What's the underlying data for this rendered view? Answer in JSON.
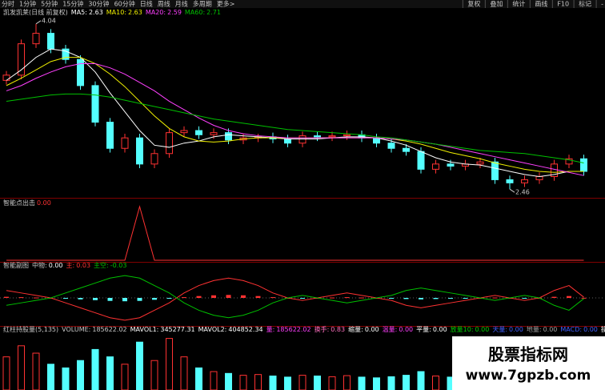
{
  "toolbar": {
    "tabs": [
      "分时",
      "1分钟",
      "5分钟",
      "15分钟",
      "30分钟",
      "60分钟",
      "日线",
      "周线",
      "月线",
      "多周期",
      "更多>"
    ],
    "active": 6,
    "buttons": [
      "复权",
      "叠加",
      "统计",
      "画线",
      "F10",
      "标记",
      "-"
    ]
  },
  "chart_data": [
    {
      "type": "candlestick",
      "title": "凯发凯莱(日线 前复权)",
      "open": [
        3.5,
        3.55,
        3.85,
        3.95,
        3.8,
        3.7,
        3.45,
        3.1,
        2.85,
        2.95,
        2.7,
        2.8,
        3.0,
        3.02,
        2.98,
        3.0,
        2.93,
        2.95,
        2.96,
        2.94,
        2.9,
        2.97,
        2.96,
        2.97,
        2.98,
        2.95,
        2.9,
        2.85,
        2.82,
        2.65,
        2.7,
        2.68,
        2.7,
        2.72,
        2.55,
        2.52,
        2.55,
        2.58,
        2.7,
        2.75
      ],
      "high": [
        3.59,
        3.89,
        4.04,
        3.99,
        3.84,
        3.74,
        3.49,
        3.14,
        2.99,
        2.99,
        2.84,
        3.04,
        3.06,
        3.06,
        3.04,
        3.04,
        2.99,
        2.99,
        3.0,
        2.98,
        3.01,
        3.01,
        3.01,
        3.02,
        3.02,
        2.99,
        2.94,
        2.89,
        2.86,
        2.74,
        2.74,
        2.74,
        2.76,
        2.76,
        2.59,
        2.59,
        2.62,
        2.74,
        2.79,
        2.79
      ],
      "low": [
        3.46,
        3.51,
        3.81,
        3.76,
        3.66,
        3.41,
        3.06,
        2.81,
        2.81,
        2.66,
        2.66,
        2.76,
        2.96,
        2.94,
        2.94,
        2.89,
        2.89,
        2.91,
        2.9,
        2.86,
        2.86,
        2.92,
        2.92,
        2.93,
        2.91,
        2.86,
        2.81,
        2.78,
        2.61,
        2.61,
        2.64,
        2.64,
        2.66,
        2.51,
        2.46,
        2.48,
        2.51,
        2.54,
        2.66,
        2.59
      ],
      "close": [
        3.55,
        3.85,
        3.95,
        3.8,
        3.7,
        3.45,
        3.1,
        2.85,
        2.95,
        2.7,
        2.8,
        3.0,
        3.02,
        2.98,
        3.0,
        2.93,
        2.95,
        2.96,
        2.94,
        2.9,
        2.97,
        2.96,
        2.97,
        2.98,
        2.95,
        2.9,
        2.85,
        2.82,
        2.65,
        2.7,
        2.68,
        2.7,
        2.72,
        2.55,
        2.52,
        2.55,
        2.58,
        2.7,
        2.75,
        2.63
      ],
      "up_color": "#ff3232",
      "down_color": "#54ffff",
      "ylim": [
        2.4,
        4.1
      ],
      "annotations": [
        {
          "series": "high",
          "index": 2
        },
        {
          "series": "low",
          "index": 34
        }
      ],
      "series": [
        {
          "name": "MA5",
          "color": "#ffffff",
          "values": [
            3.5,
            3.6,
            3.72,
            3.8,
            3.78,
            3.72,
            3.58,
            3.38,
            3.2,
            3.02,
            2.88,
            2.86,
            2.9,
            2.92,
            2.96,
            2.98,
            2.97,
            2.96,
            2.95,
            2.94,
            2.94,
            2.94,
            2.95,
            2.96,
            2.96,
            2.95,
            2.92,
            2.88,
            2.82,
            2.76,
            2.72,
            2.7,
            2.69,
            2.66,
            2.63,
            2.6,
            2.58,
            2.6,
            2.63,
            2.63
          ]
        },
        {
          "name": "MA10",
          "color": "#f0f000",
          "values": [
            3.45,
            3.52,
            3.6,
            3.68,
            3.72,
            3.72,
            3.66,
            3.56,
            3.44,
            3.3,
            3.16,
            3.04,
            2.96,
            2.92,
            2.91,
            2.92,
            2.94,
            2.95,
            2.95,
            2.95,
            2.95,
            2.95,
            2.95,
            2.95,
            2.95,
            2.95,
            2.94,
            2.92,
            2.89,
            2.85,
            2.81,
            2.78,
            2.75,
            2.71,
            2.68,
            2.65,
            2.63,
            2.62,
            2.63,
            2.63
          ]
        },
        {
          "name": "MA20",
          "color": "#ff40ff",
          "values": [
            3.4,
            3.45,
            3.52,
            3.58,
            3.63,
            3.66,
            3.66,
            3.62,
            3.56,
            3.48,
            3.4,
            3.3,
            3.22,
            3.14,
            3.07,
            3.02,
            2.99,
            2.97,
            2.96,
            2.95,
            2.95,
            2.95,
            2.95,
            2.95,
            2.95,
            2.95,
            2.94,
            2.93,
            2.91,
            2.89,
            2.86,
            2.83,
            2.8,
            2.77,
            2.74,
            2.71,
            2.68,
            2.65,
            2.62,
            2.59
          ]
        },
        {
          "name": "MA60",
          "color": "#00c000",
          "values": [
            3.3,
            3.32,
            3.34,
            3.36,
            3.37,
            3.37,
            3.36,
            3.34,
            3.31,
            3.28,
            3.25,
            3.22,
            3.19,
            3.16,
            3.13,
            3.11,
            3.09,
            3.07,
            3.05,
            3.03,
            3.02,
            3.01,
            3.0,
            2.99,
            2.98,
            2.96,
            2.95,
            2.93,
            2.91,
            2.89,
            2.87,
            2.85,
            2.83,
            2.82,
            2.81,
            2.8,
            2.78,
            2.76,
            2.74,
            2.71
          ]
        }
      ]
    },
    {
      "type": "line",
      "title": "智能点出击",
      "readouts": [
        {
          "text": "0.00",
          "color": "#ff3232"
        }
      ],
      "ylim": [
        0,
        1
      ],
      "series": [
        {
          "name": "点出击",
          "color": "#ff3232",
          "values": [
            0,
            0,
            0,
            0,
            0,
            0,
            0,
            0,
            0,
            1,
            0,
            0,
            0,
            0,
            0,
            0,
            0,
            0,
            0,
            0,
            0,
            0,
            0,
            0,
            0,
            0,
            0,
            0,
            0,
            0,
            0,
            0,
            0,
            0,
            0,
            0,
            0,
            0,
            0,
            0
          ]
        }
      ]
    },
    {
      "type": "line",
      "title": "智能副图",
      "readouts": [
        {
          "name": "中物",
          "text": "0.00",
          "color": "#ffffff"
        }
      ],
      "ylim": [
        -1.1,
        1.1
      ],
      "bars": true,
      "series": [
        {
          "name": "主",
          "color": "#ff3232",
          "values": [
            0.3,
            0.2,
            0.1,
            0,
            -0.2,
            -0.4,
            -0.6,
            -0.8,
            -0.9,
            -0.8,
            -0.5,
            -0.2,
            0.2,
            0.5,
            0.7,
            0.8,
            0.7,
            0.5,
            0.2,
            0,
            -0.1,
            0,
            0.1,
            0.2,
            0.1,
            0,
            -0.1,
            -0.3,
            -0.4,
            -0.3,
            -0.2,
            -0.1,
            0,
            0.1,
            0,
            -0.1,
            0,
            0.3,
            0.5,
            0.03
          ]
        },
        {
          "name": "主空",
          "color": "#00c000",
          "values": [
            -0.3,
            -0.2,
            -0.1,
            0,
            0.2,
            0.4,
            0.6,
            0.8,
            0.9,
            0.8,
            0.5,
            0.2,
            -0.2,
            -0.5,
            -0.7,
            -0.8,
            -0.7,
            -0.5,
            -0.2,
            0,
            0.1,
            0,
            -0.1,
            -0.2,
            -0.1,
            0,
            0.1,
            0.3,
            0.4,
            0.3,
            0.2,
            0.1,
            0,
            -0.1,
            0,
            0.1,
            0,
            -0.3,
            -0.5,
            -0.03
          ]
        }
      ]
    },
    {
      "type": "bar",
      "title": "红柱持股量(5,135)",
      "ylim": [
        0,
        1500000
      ],
      "values": [
        900000,
        1200000,
        1000000,
        700000,
        600000,
        800000,
        1100000,
        900000,
        700000,
        1300000,
        800000,
        1400000,
        900000,
        600000,
        500000,
        450000,
        400000,
        420000,
        380000,
        350000,
        400000,
        380000,
        360000,
        390000,
        350000,
        330000,
        360000,
        400000,
        500000,
        380000,
        350000,
        330000,
        320000,
        400000,
        450000,
        380000,
        350000,
        420000,
        500000,
        185622.02
      ],
      "volume_name": "VOLUME",
      "volume_alias": "量",
      "readouts": [
        {
          "name": "MAVOL1",
          "text": "345277.31",
          "color": "#ffffff"
        },
        {
          "name": "MAVOL2",
          "text": "404852.34",
          "color": "#ffffff"
        },
        {
          "name": "换手",
          "text": "0.83",
          "color": "#ff70c0"
        },
        {
          "name": "缩量",
          "text": "0.00",
          "color": "#ffffff"
        },
        {
          "name": "温量",
          "text": "0.00",
          "color": "#ff40ff"
        },
        {
          "name": "平量",
          "text": "0.00",
          "color": "#ffffff"
        },
        {
          "name": "放量10",
          "text": "0.00",
          "color": "#00d000"
        },
        {
          "name": "天量",
          "text": "0.00",
          "color": "#4060ff"
        },
        {
          "name": "地量",
          "text": "0.00",
          "color": "#a0a0a0"
        },
        {
          "name": "MACD",
          "text": "0.00",
          "color": "#4060ff"
        },
        {
          "name": "操盘",
          "text": "0.00",
          "color": "#ffffff"
        }
      ]
    }
  ],
  "watermark": {
    "title": "股票指标网",
    "url": "www.7gpzb.com"
  }
}
